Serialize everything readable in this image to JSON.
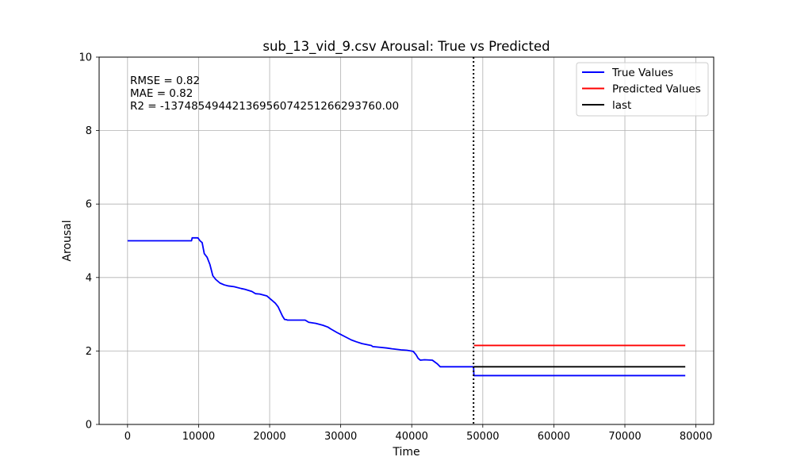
{
  "chart_data": {
    "type": "line",
    "title": "sub_13_vid_9.csv Arousal: True vs Predicted",
    "xlabel": "Time",
    "ylabel": "Arousal",
    "xlim": [
      -4000,
      82500
    ],
    "ylim": [
      0,
      10
    ],
    "xticks": [
      0,
      10000,
      20000,
      30000,
      40000,
      50000,
      60000,
      70000,
      80000
    ],
    "yticks": [
      0,
      2,
      4,
      6,
      8,
      10
    ],
    "grid": true,
    "legend_position": "top-right",
    "annotations": [
      "RMSE = 0.82",
      "MAE = 0.82",
      "R2 = -13748549442136956074251266293760.00"
    ],
    "vertical_line": {
      "x": 48700,
      "style": "dotted",
      "color": "#000000"
    },
    "series": [
      {
        "name": "True Values",
        "color": "#0000ff",
        "x": [
          0,
          9000,
          9100,
          9900,
          10200,
          10500,
          10800,
          11200,
          11600,
          12000,
          12400,
          13000,
          13600,
          14200,
          15000,
          16000,
          16500,
          17500,
          18000,
          18600,
          19600,
          20200,
          20800,
          21200,
          21800,
          22100,
          22400,
          22500,
          23000,
          25000,
          25500,
          26500,
          27500,
          28200,
          28600,
          29500,
          30000,
          30500,
          31500,
          32200,
          33000,
          34300,
          34500,
          35500,
          36500,
          37200,
          38500,
          39300,
          40200,
          40600,
          40900,
          41200,
          41800,
          42900,
          43600,
          44000,
          48700,
          48750,
          78500
        ],
        "y": [
          5.0,
          5.0,
          5.08,
          5.08,
          5.0,
          4.95,
          4.65,
          4.55,
          4.35,
          4.05,
          3.95,
          3.85,
          3.8,
          3.77,
          3.75,
          3.7,
          3.68,
          3.62,
          3.56,
          3.55,
          3.5,
          3.4,
          3.3,
          3.2,
          2.95,
          2.86,
          2.85,
          2.84,
          2.84,
          2.84,
          2.78,
          2.75,
          2.7,
          2.65,
          2.6,
          2.5,
          2.45,
          2.4,
          2.3,
          2.25,
          2.2,
          2.15,
          2.12,
          2.1,
          2.08,
          2.06,
          2.03,
          2.02,
          1.99,
          1.9,
          1.8,
          1.75,
          1.76,
          1.75,
          1.65,
          1.57,
          1.57,
          1.33,
          1.33
        ]
      },
      {
        "name": "Predicted Values",
        "color": "#ff0000",
        "x": [
          48750,
          78500
        ],
        "y": [
          2.15,
          2.15
        ]
      },
      {
        "name": "last",
        "color": "#000000",
        "x": [
          48750,
          78500
        ],
        "y": [
          1.57,
          1.57
        ]
      }
    ]
  }
}
